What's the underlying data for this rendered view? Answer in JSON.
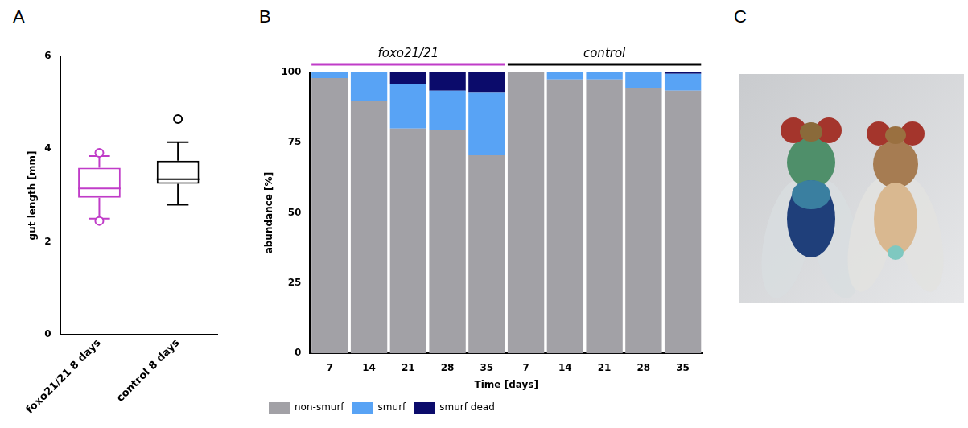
{
  "chart_data": [
    {
      "panel": "A",
      "type": "box",
      "categories": [
        "foxo21/21 8 days",
        "control 8 days"
      ],
      "colors": [
        "#c03cc8",
        "#000000"
      ],
      "boxes": [
        {
          "min": 2.5,
          "q1": 2.95,
          "median": 3.15,
          "q3": 3.6,
          "max": 3.85,
          "outliers": [
            2.45,
            3.92
          ]
        },
        {
          "min": 2.8,
          "q1": 3.25,
          "median": 3.35,
          "q3": 3.75,
          "max": 4.15,
          "outliers": [
            4.65
          ]
        }
      ],
      "y_label": "gut length [mm]",
      "ylim": [
        0,
        6
      ],
      "yticks": [
        0,
        2,
        4,
        6
      ],
      "grid": false
    },
    {
      "panel": "B",
      "type": "bar",
      "stacked": true,
      "categories": [
        7,
        14,
        21,
        28,
        35,
        7,
        14,
        21,
        28,
        35
      ],
      "groups": [
        {
          "name": "foxo21/21",
          "color": "#c03cc8",
          "count": 5
        },
        {
          "name": "control",
          "color": "#000000",
          "count": 5
        }
      ],
      "series": [
        {
          "name": "non-smurf",
          "color": "#a2a1a6",
          "values": [
            98,
            90,
            80,
            79.5,
            70.5,
            100,
            97.5,
            97.5,
            94.5,
            93.5
          ]
        },
        {
          "name": "smurf",
          "color": "#58a3f5",
          "values": [
            2,
            10,
            16,
            14,
            22.5,
            0,
            2.5,
            2.5,
            5.5,
            6
          ]
        },
        {
          "name": "smurf dead",
          "color": "#0b0b6b",
          "values": [
            0,
            0,
            4,
            6.5,
            7,
            0,
            0,
            0,
            0,
            0.5
          ]
        }
      ],
      "x_label": "Time [days]",
      "y_label": "abundance [%]",
      "ylim": [
        0,
        100
      ],
      "yticks": [
        0,
        25,
        50,
        75,
        100
      ],
      "grid": false,
      "legend": "bottom"
    }
  ],
  "image": {
    "panel": "C"
  }
}
